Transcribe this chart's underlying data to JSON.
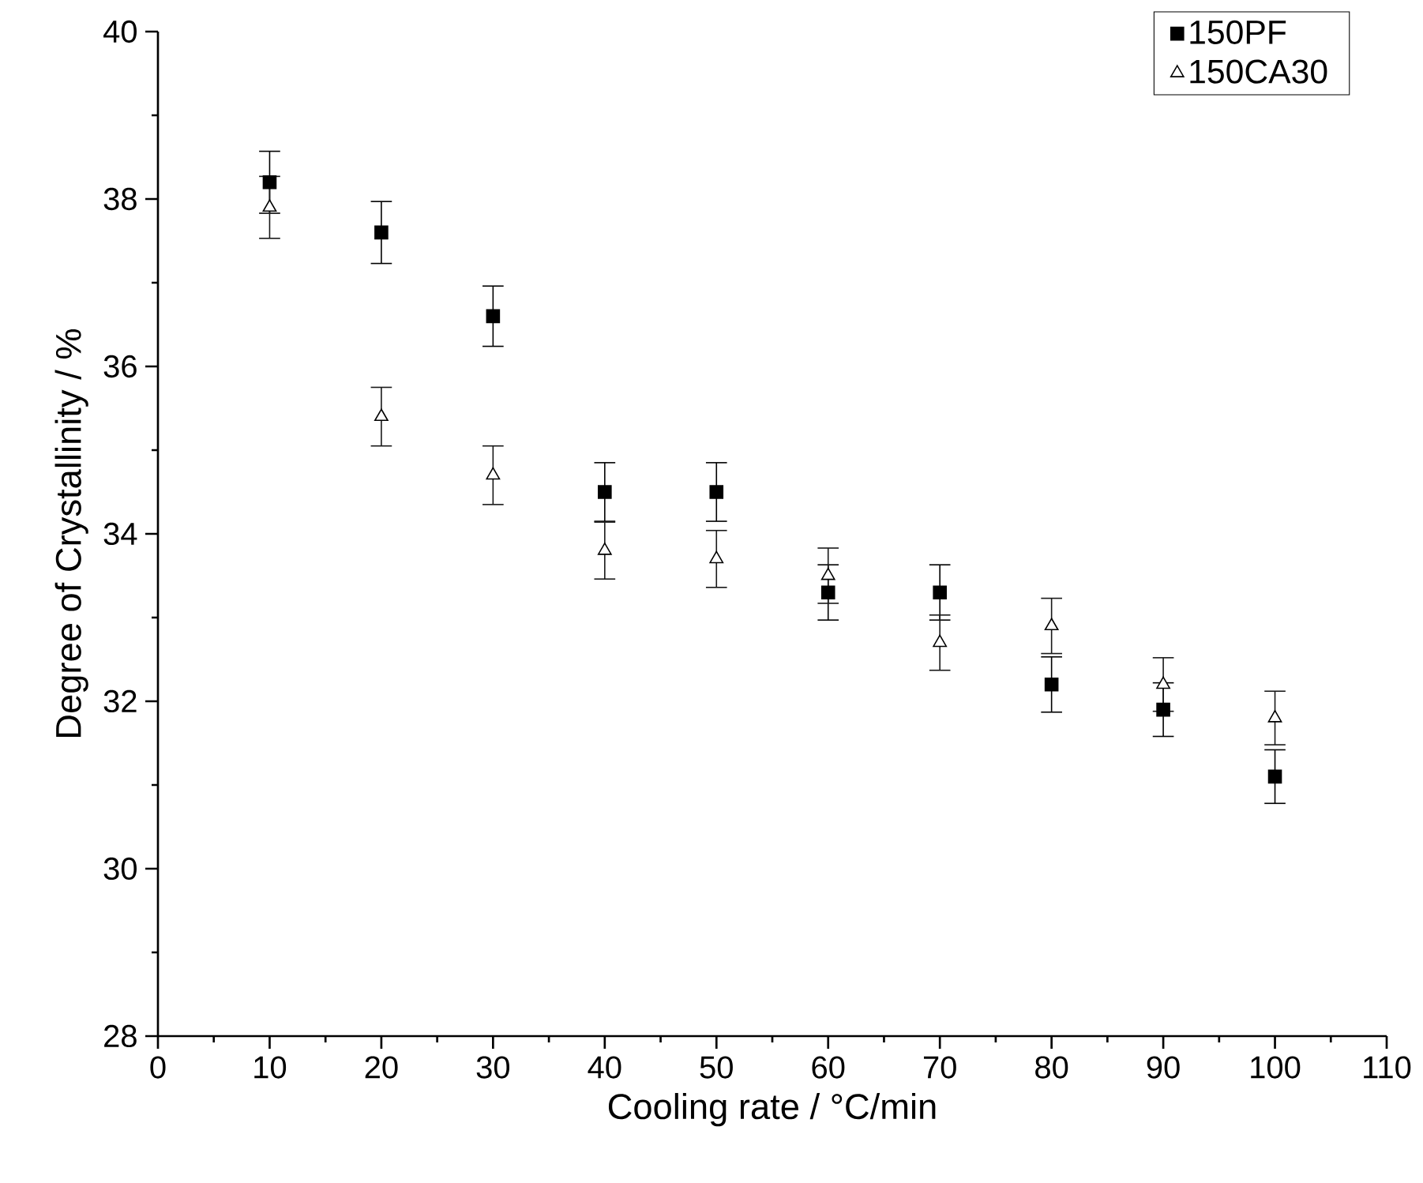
{
  "chart_data": {
    "type": "scatter",
    "xlabel": "Cooling rate / °C/min",
    "ylabel": "Degree of Crystallinity / %",
    "x": [
      10,
      20,
      30,
      40,
      50,
      60,
      70,
      80,
      90,
      100
    ],
    "series": [
      {
        "name": "150PF",
        "color": "#000000",
        "marker": "square",
        "values": [
          38.2,
          37.6,
          36.6,
          34.5,
          34.5,
          33.3,
          33.3,
          32.2,
          31.9,
          31.1
        ],
        "errors": [
          0.37,
          0.37,
          0.36,
          0.35,
          0.35,
          0.33,
          0.33,
          0.33,
          0.32,
          0.32
        ]
      },
      {
        "name": "150CA30",
        "color": "#000000",
        "marker": "triangle",
        "values": [
          37.9,
          35.4,
          34.7,
          33.8,
          33.7,
          33.5,
          32.7,
          32.9,
          32.2,
          31.8
        ],
        "errors": [
          0.37,
          0.35,
          0.35,
          0.34,
          0.34,
          0.33,
          0.33,
          0.33,
          0.32,
          0.32
        ]
      }
    ],
    "xlim": [
      0,
      110
    ],
    "xticks": [
      0,
      10,
      20,
      30,
      40,
      50,
      60,
      70,
      80,
      90,
      100,
      110
    ],
    "ylim": [
      28,
      40
    ],
    "yticks": [
      28,
      30,
      32,
      34,
      36,
      38,
      40
    ],
    "legend": "top right",
    "grid": false
  }
}
